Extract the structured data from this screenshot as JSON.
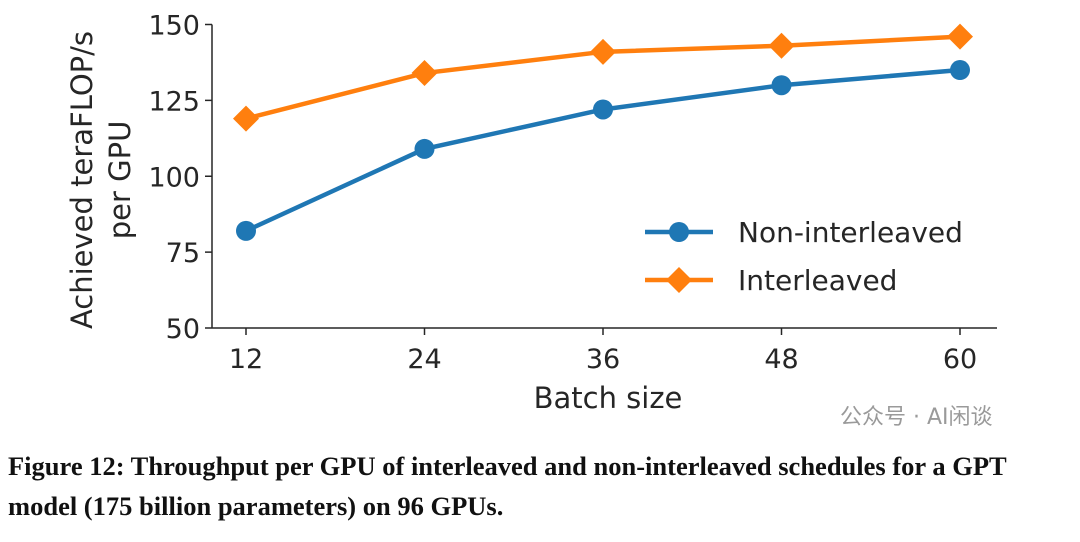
{
  "chart_data": {
    "type": "line",
    "xlabel": "Batch size",
    "ylabel": [
      "Achieved teraFLOP/s",
      "per GPU"
    ],
    "x": [
      12,
      24,
      36,
      48,
      60
    ],
    "xticks": [
      "12",
      "24",
      "36",
      "48",
      "60"
    ],
    "yticks": [
      "50",
      "75",
      "100",
      "125",
      "150"
    ],
    "ylim": [
      50,
      150
    ],
    "grid": false,
    "legend_position": "center-right",
    "series": [
      {
        "name": "Non-interleaved",
        "values": [
          82,
          109,
          122,
          130,
          135
        ],
        "color": "#1f77b4",
        "marker": "circle"
      },
      {
        "name": "Interleaved",
        "values": [
          119,
          134,
          141,
          143,
          146
        ],
        "color": "#ff7f0e",
        "marker": "diamond"
      }
    ]
  },
  "caption": "Figure 12: Throughput per GPU of interleaved and non-interleaved schedules for a GPT model (175 billion parameters) on 96 GPUs.",
  "watermark": "公众号 · AI闲谈"
}
